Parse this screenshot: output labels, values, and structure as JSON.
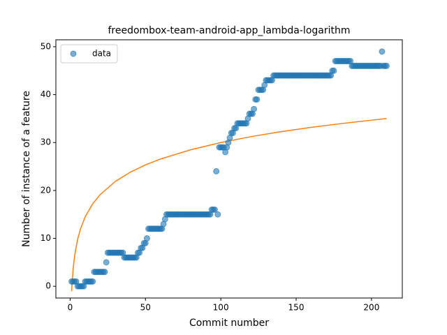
{
  "chart_data": {
    "type": "scatter",
    "title": "freedombox-team-android-app_lambda-logarithm",
    "x_label": "Commit number",
    "y_label": "Number of instance of a feature",
    "xlim": [
      -9.45,
      220.45
    ],
    "ylim": [
      -2.45,
      51.45
    ],
    "xticks": [
      0,
      50,
      100,
      150,
      200
    ],
    "yticks": [
      0,
      10,
      20,
      30,
      40,
      50
    ],
    "legend": "upper left",
    "series": [
      {
        "name": "data",
        "color": "#1f77b4",
        "style": "marker",
        "x": [
          1,
          2,
          3,
          4,
          5,
          6,
          7,
          8,
          9,
          10,
          11,
          12,
          13,
          14,
          15,
          16,
          17,
          18,
          19,
          20,
          21,
          22,
          23,
          24,
          25,
          26,
          27,
          28,
          29,
          30,
          31,
          32,
          33,
          34,
          35,
          36,
          37,
          38,
          39,
          40,
          41,
          42,
          43,
          44,
          45,
          46,
          47,
          48,
          49,
          50,
          51,
          52,
          53,
          54,
          55,
          56,
          57,
          58,
          59,
          60,
          61,
          62,
          63,
          64,
          65,
          66,
          67,
          68,
          69,
          70,
          71,
          72,
          73,
          74,
          75,
          76,
          77,
          78,
          79,
          80,
          81,
          82,
          83,
          84,
          85,
          86,
          87,
          88,
          89,
          90,
          91,
          92,
          93,
          94,
          95,
          96,
          97,
          98,
          99,
          100,
          101,
          102,
          103,
          104,
          105,
          106,
          107,
          108,
          109,
          110,
          111,
          112,
          113,
          114,
          115,
          116,
          117,
          118,
          119,
          120,
          121,
          122,
          123,
          124,
          125,
          126,
          127,
          128,
          129,
          130,
          131,
          132,
          133,
          134,
          135,
          136,
          137,
          138,
          139,
          140,
          141,
          142,
          143,
          144,
          145,
          146,
          147,
          148,
          149,
          150,
          151,
          152,
          153,
          154,
          155,
          156,
          157,
          158,
          159,
          160,
          161,
          162,
          163,
          164,
          165,
          166,
          167,
          168,
          169,
          170,
          171,
          172,
          173,
          174,
          175,
          176,
          177,
          178,
          179,
          180,
          181,
          182,
          183,
          184,
          185,
          186,
          187,
          188,
          189,
          190,
          191,
          192,
          193,
          194,
          195,
          196,
          197,
          198,
          199,
          200,
          201,
          202,
          203,
          204,
          205,
          206,
          207,
          208,
          209,
          210
        ],
        "values": [
          1,
          1,
          1,
          1,
          0,
          0,
          0,
          0,
          0,
          1,
          1,
          1,
          1,
          1,
          1,
          3,
          3,
          3,
          3,
          3,
          3,
          3,
          3,
          5,
          7,
          7,
          7,
          7,
          7,
          7,
          7,
          7,
          7,
          7,
          7,
          6,
          6,
          6,
          6,
          6,
          6,
          6,
          6,
          6,
          7,
          7,
          8,
          8,
          9,
          9,
          10,
          12,
          12,
          12,
          12,
          12,
          12,
          12,
          12,
          12,
          12,
          13,
          14,
          15,
          15,
          15,
          15,
          15,
          15,
          15,
          15,
          15,
          15,
          15,
          15,
          15,
          15,
          15,
          15,
          15,
          15,
          15,
          15,
          15,
          15,
          15,
          15,
          15,
          15,
          15,
          15,
          15,
          15,
          16,
          16,
          16,
          24,
          15,
          29,
          29,
          29,
          29,
          28,
          29,
          30,
          31,
          32,
          32,
          33,
          33,
          34,
          34,
          34,
          34,
          34,
          34,
          34,
          35,
          36,
          36,
          36,
          37,
          39,
          39,
          41,
          41,
          41,
          41,
          42,
          43,
          43,
          43,
          43,
          43,
          44,
          44,
          44,
          44,
          44,
          44,
          44,
          44,
          44,
          44,
          44,
          44,
          44,
          44,
          44,
          44,
          44,
          44,
          44,
          44,
          44,
          44,
          44,
          44,
          44,
          44,
          44,
          44,
          44,
          44,
          44,
          44,
          44,
          44,
          44,
          44,
          44,
          44,
          44,
          45,
          45,
          47,
          47,
          47,
          47,
          47,
          47,
          47,
          47,
          47,
          47,
          47,
          46,
          46,
          46,
          46,
          46,
          46,
          46,
          46,
          46,
          46,
          46,
          46,
          46,
          46,
          46,
          46,
          46,
          46,
          46,
          46,
          49,
          46,
          46,
          46
        ]
      },
      {
        "color": "#ff7f0e",
        "style": "line",
        "x": [
          1,
          2,
          3,
          5,
          7,
          10,
          15,
          20,
          30,
          40,
          50,
          60,
          80,
          100,
          120,
          140,
          160,
          180,
          200,
          210
        ],
        "values": [
          -1.04,
          3.63,
          6.36,
          9.81,
          12.08,
          14.48,
          17.21,
          19.15,
          21.88,
          23.82,
          25.33,
          26.56,
          28.49,
          30.0,
          31.23,
          32.27,
          33.17,
          33.96,
          34.67,
          35.0
        ]
      }
    ]
  }
}
